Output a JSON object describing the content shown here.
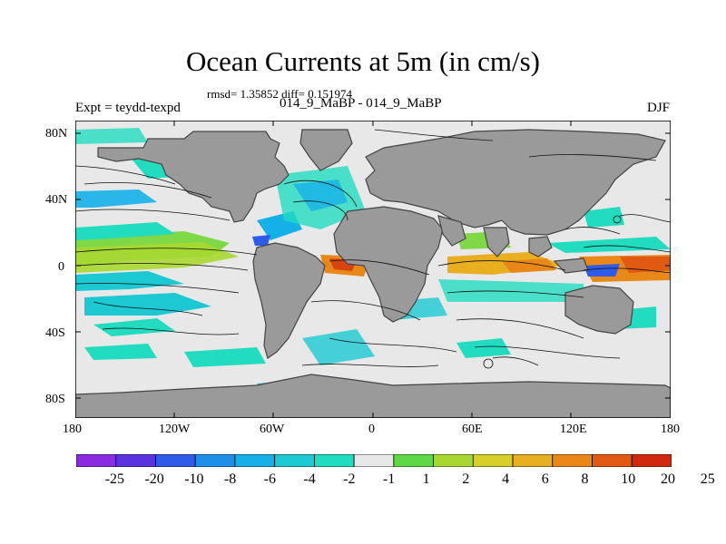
{
  "title": "Ocean Currents at 5m (in cm/s)",
  "stats_line": "rmsd= 1.35852 diff= 0.151974",
  "experiment_label": "Expt = teydd-texpd",
  "comparison_label": "014_9_MaBP - 014_9_MaBP",
  "season_label": "DJF",
  "lat_ticks": [
    "80N",
    "40N",
    "0",
    "40S",
    "80S"
  ],
  "lon_ticks": [
    "180",
    "120W",
    "60W",
    "0",
    "60E",
    "120E",
    "180"
  ],
  "colorbar": {
    "colors": [
      "#8a2be2",
      "#5a32e0",
      "#2e5be8",
      "#1e8fe8",
      "#15b0e8",
      "#1cc9d2",
      "#22dcc0",
      "#e8e8e8",
      "#5fd845",
      "#a8d830",
      "#d8d02a",
      "#e8b020",
      "#e88818",
      "#e05a12",
      "#d0280c"
    ],
    "labels": [
      "-25",
      "-20",
      "-10",
      "-8",
      "-6",
      "-4",
      "-2",
      "-1",
      "1",
      "2",
      "4",
      "6",
      "8",
      "10",
      "20",
      "25"
    ]
  },
  "colors": {
    "land": "#9a9a9a",
    "ocean_neutral": "#e8e8e8",
    "coast_outline": "#444444",
    "streamline": "#111111"
  }
}
